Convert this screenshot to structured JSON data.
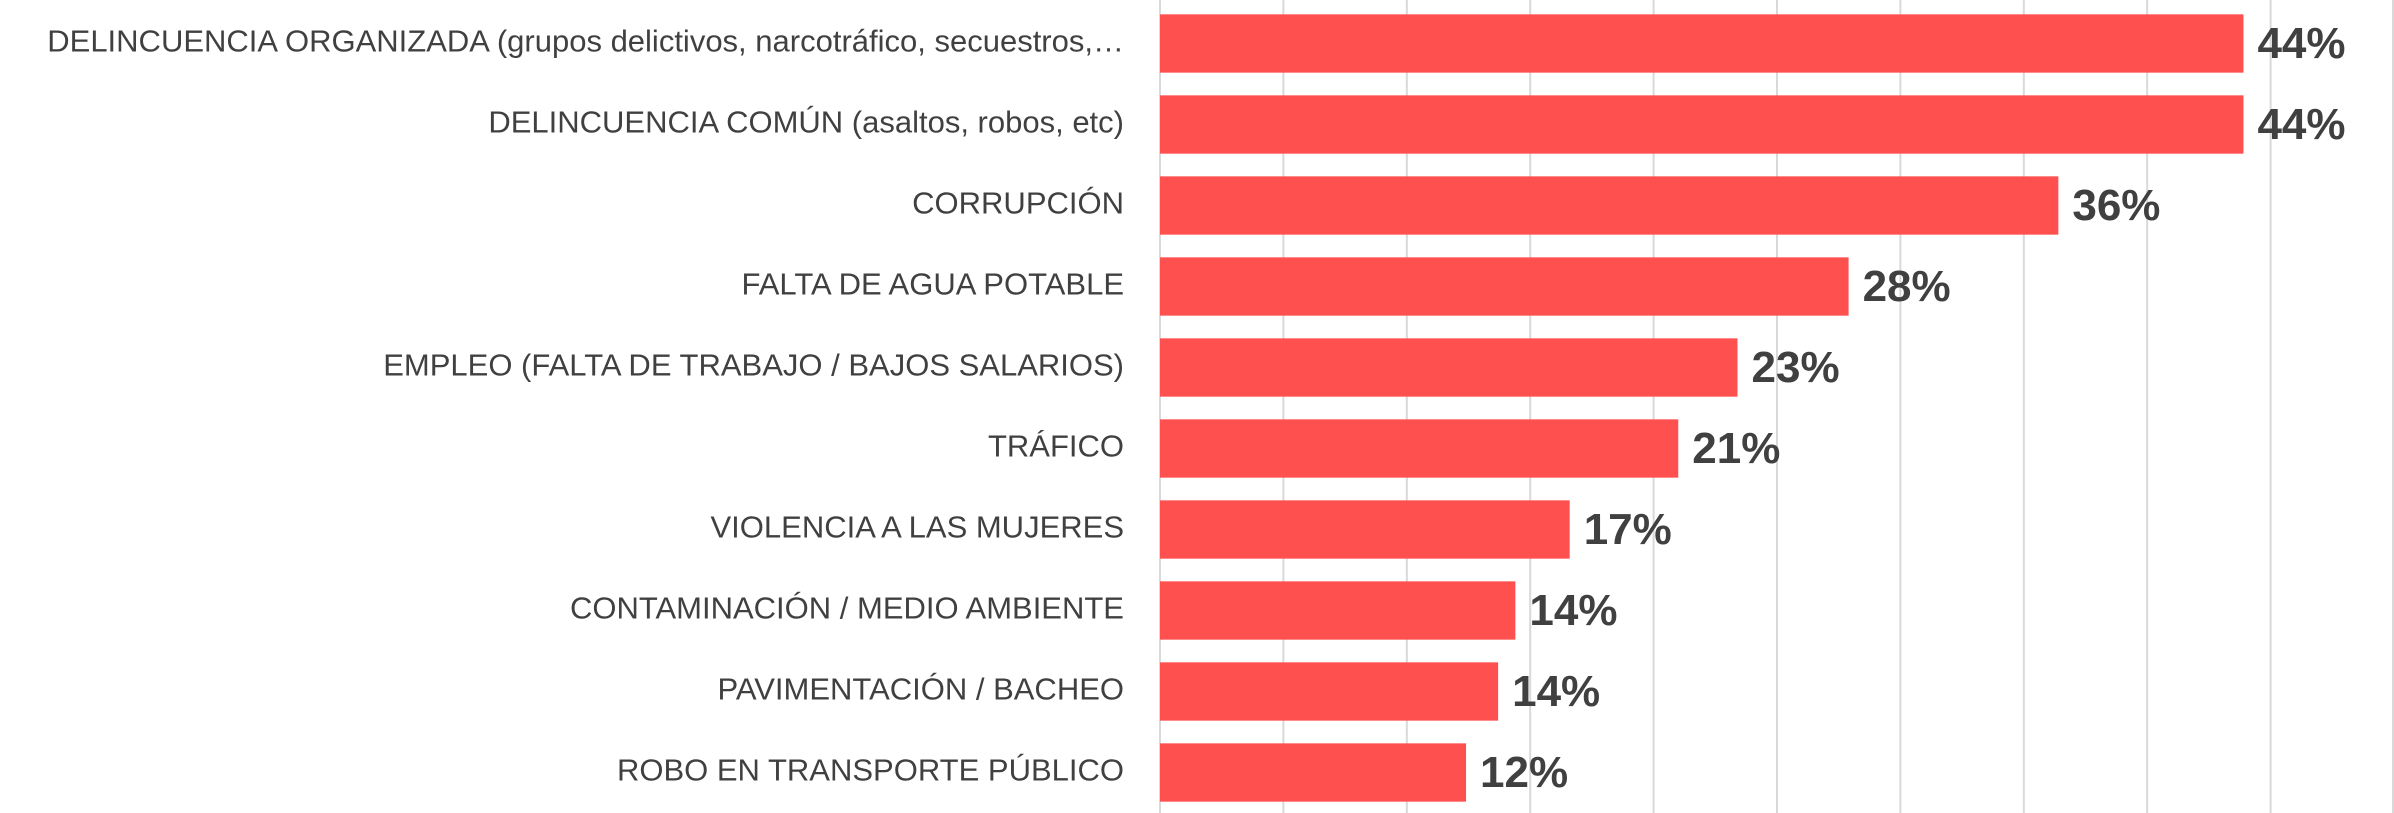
{
  "chart_data": {
    "type": "barh",
    "categories": [
      "DELINCUENCIA ORGANIZADA (grupos delictivos, narcotráfico, secuestros,…",
      "DELINCUENCIA COMÚN (asaltos, robos, etc)",
      "CORRUPCIÓN",
      "FALTA DE AGUA POTABLE",
      "EMPLEO (FALTA DE TRABAJO / BAJOS SALARIOS)",
      "TRÁFICO",
      "VIOLENCIA A LAS MUJERES",
      "CONTAMINACIÓN / MEDIO AMBIENTE",
      "PAVIMENTACIÓN / BACHEO",
      "ROBO EN TRANSPORTE PÚBLICO"
    ],
    "values": [
      43.9,
      43.9,
      36.4,
      27.9,
      23.4,
      21.0,
      16.6,
      14.4,
      13.7,
      12.4
    ],
    "value_labels": [
      "44%",
      "44%",
      "36%",
      "28%",
      "23%",
      "21%",
      "17%",
      "14%",
      "14%",
      "12%"
    ],
    "color": "#ff5050",
    "xlim": [
      0,
      50
    ],
    "xticks": [
      0,
      5,
      10,
      15,
      20,
      25,
      30,
      35,
      40,
      45,
      50
    ],
    "grid": true
  }
}
